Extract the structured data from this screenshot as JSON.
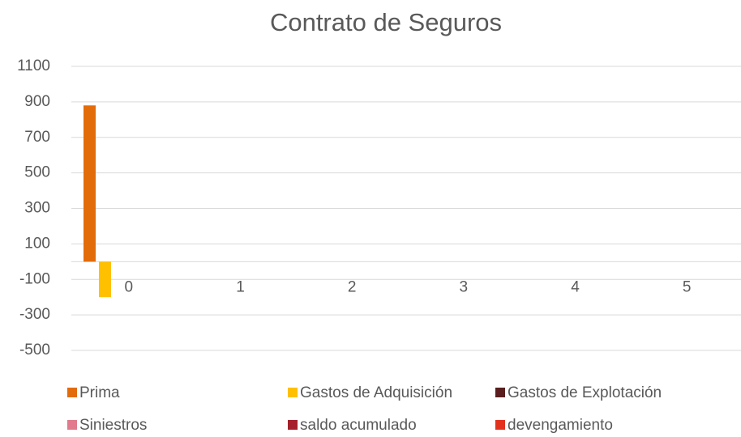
{
  "chart_data": {
    "type": "bar",
    "title": "Contrato de Seguros",
    "categories": [
      "0",
      "1",
      "2",
      "3",
      "4",
      "5"
    ],
    "series": [
      {
        "name": "Prima",
        "color": "#e36c0a",
        "values": [
          880,
          0,
          0,
          0,
          0,
          0
        ]
      },
      {
        "name": "Gastos de Adquisición",
        "color": "#ffc000",
        "values": [
          -200,
          0,
          0,
          0,
          0,
          0
        ]
      },
      {
        "name": "Gastos de Explotación",
        "color": "#5a1e1e",
        "values": [
          0,
          0,
          0,
          0,
          0,
          0
        ]
      },
      {
        "name": "Siniestros",
        "color": "#e07a8c",
        "values": [
          0,
          0,
          0,
          0,
          0,
          0
        ]
      },
      {
        "name": "saldo acumulado",
        "color": "#a5202a",
        "values": [
          0,
          0,
          0,
          0,
          0,
          0
        ]
      },
      {
        "name": "devengamiento",
        "color": "#e2321e",
        "values": [
          0,
          0,
          0,
          0,
          0,
          0
        ]
      }
    ],
    "ylim": [
      -500,
      1100
    ],
    "yticks": [
      -500,
      -300,
      -100,
      100,
      300,
      500,
      700,
      900,
      1100
    ],
    "grid": true,
    "legend": "bottom"
  }
}
